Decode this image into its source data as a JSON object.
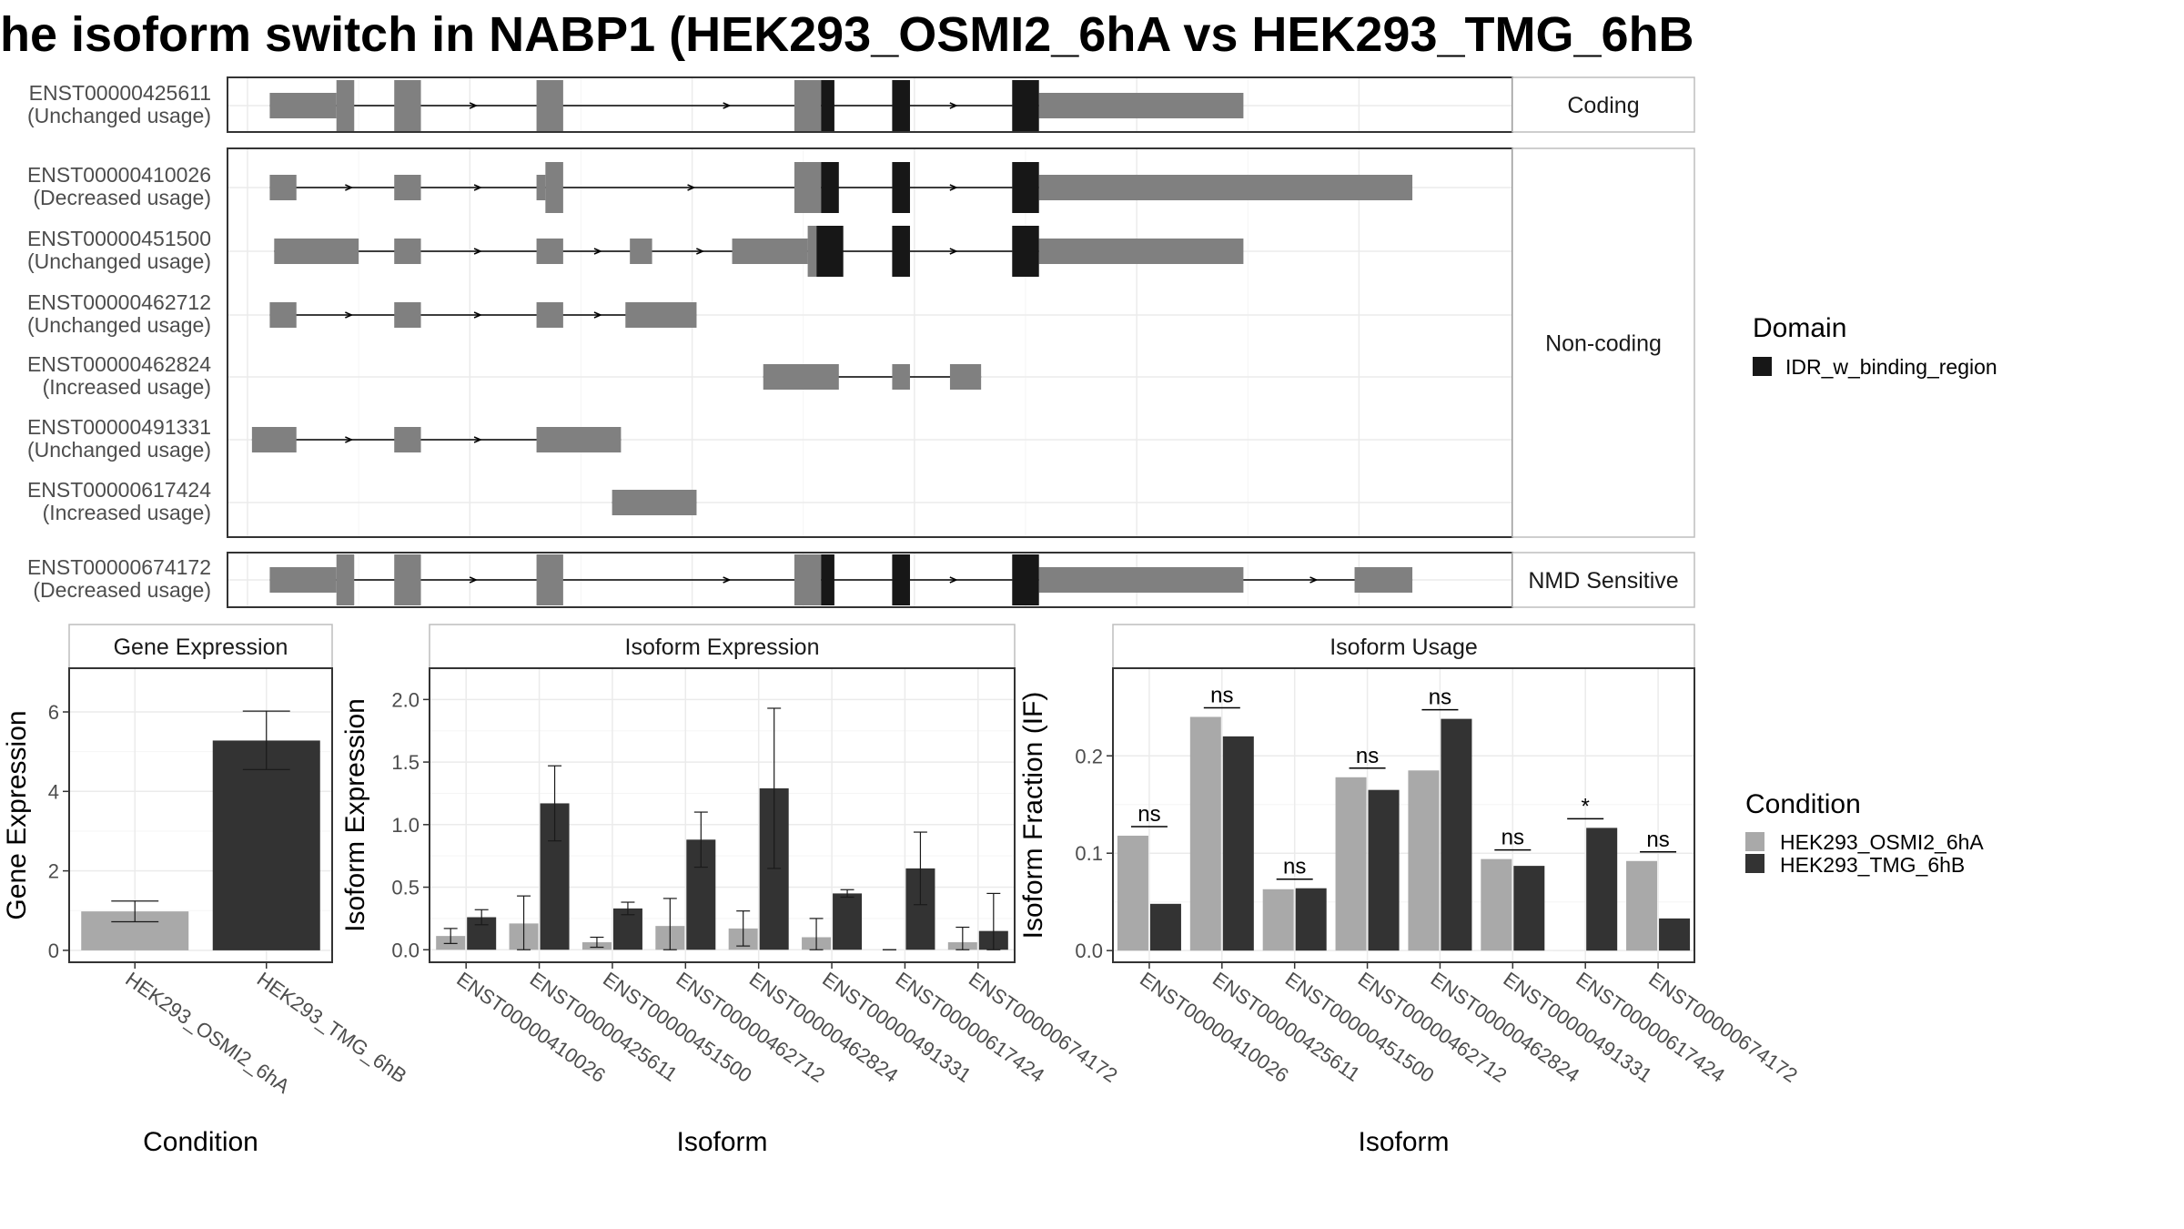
{
  "title": "he isoform switch in NABP1 (HEK293_OSMI2_6hA vs HEK293_TMG_6hB",
  "colors": {
    "exon": "#808080",
    "domain": "#171717",
    "cond1": "#a9a9a9",
    "cond2": "#333333",
    "grid": "#ebebeb",
    "panel_border": "#333333",
    "strip_border": "#bdbdbd"
  },
  "structure": {
    "xrange": [
      0,
      28
    ],
    "groups": [
      {
        "label": "Coding",
        "rows": [
          0
        ]
      },
      {
        "label": "Non-coding",
        "rows": [
          1,
          2,
          3,
          4,
          5,
          6
        ]
      },
      {
        "label": "NMD Sensitive",
        "rows": [
          7
        ]
      }
    ],
    "transcripts": [
      {
        "id": "ENST00000425611",
        "usage": "(Unchanged usage)",
        "line": [
          0.5,
          18.6
        ],
        "exons": [
          [
            0.5,
            2.0,
            "thin"
          ],
          [
            2.0,
            2.4,
            "thick"
          ],
          [
            3.3,
            3.9,
            "thick"
          ],
          [
            6.5,
            7.1,
            "thick"
          ],
          [
            12.3,
            12.9,
            "thick"
          ],
          [
            14.5,
            14.9,
            "thick"
          ],
          [
            17.2,
            17.8,
            "thick"
          ],
          [
            17.8,
            22.4,
            "thin"
          ]
        ],
        "domains": [
          [
            12.9,
            13.2
          ],
          [
            14.5,
            14.9
          ],
          [
            17.2,
            17.8
          ]
        ],
        "arrows": [
          5.1,
          10.8,
          15.9
        ]
      },
      {
        "id": "ENST00000410026",
        "usage": "(Decreased usage)",
        "line": [
          0.5,
          18.6
        ],
        "exons": [
          [
            0.5,
            1.1,
            "thin"
          ],
          [
            3.3,
            3.9,
            "thin"
          ],
          [
            6.5,
            6.7,
            "thin"
          ],
          [
            6.7,
            7.1,
            "thick"
          ],
          [
            12.3,
            12.9,
            "thick"
          ],
          [
            14.5,
            14.9,
            "thick"
          ],
          [
            17.2,
            17.8,
            "thick"
          ],
          [
            17.8,
            26.2,
            "thin"
          ]
        ],
        "domains": [
          [
            12.9,
            13.3
          ],
          [
            14.5,
            14.9
          ],
          [
            17.2,
            17.8
          ]
        ],
        "arrows": [
          2.3,
          5.2,
          10.0,
          15.9
        ]
      },
      {
        "id": "ENST00000451500",
        "usage": "(Unchanged usage)",
        "line": [
          0.6,
          18.6
        ],
        "exons": [
          [
            0.6,
            2.5,
            "thin"
          ],
          [
            3.3,
            3.9,
            "thin"
          ],
          [
            6.5,
            7.1,
            "thin"
          ],
          [
            8.6,
            9.1,
            "thin"
          ],
          [
            10.9,
            12.6,
            "thin"
          ],
          [
            12.6,
            13.0,
            "thick"
          ],
          [
            14.5,
            14.9,
            "thick"
          ],
          [
            17.2,
            17.8,
            "thick"
          ],
          [
            17.8,
            22.4,
            "thin"
          ]
        ],
        "domains": [
          [
            12.8,
            13.4
          ],
          [
            14.5,
            14.9
          ],
          [
            17.2,
            17.8
          ]
        ],
        "arrows": [
          5.2,
          7.9,
          10.2,
          15.9
        ]
      },
      {
        "id": "ENST00000462712",
        "usage": "(Unchanged usage)",
        "line": [
          0.5,
          10.1
        ],
        "exons": [
          [
            0.5,
            1.1,
            "thin"
          ],
          [
            3.3,
            3.9,
            "thin"
          ],
          [
            6.5,
            7.1,
            "thin"
          ],
          [
            8.5,
            10.1,
            "thin"
          ]
        ],
        "domains": [],
        "arrows": [
          2.3,
          5.2,
          7.9
        ]
      },
      {
        "id": "ENST00000462824",
        "usage": "(Increased usage)",
        "line": [
          11.6,
          16.5
        ],
        "exons": [
          [
            11.6,
            13.3,
            "thin"
          ],
          [
            14.5,
            14.9,
            "thin"
          ],
          [
            15.8,
            16.5,
            "thin"
          ]
        ],
        "domains": [],
        "arrows": []
      },
      {
        "id": "ENST00000491331",
        "usage": "(Unchanged usage)",
        "line": [
          0.1,
          8.4
        ],
        "exons": [
          [
            0.1,
            1.1,
            "thin"
          ],
          [
            3.3,
            3.9,
            "thin"
          ],
          [
            6.5,
            8.4,
            "thin"
          ]
        ],
        "domains": [],
        "arrows": [
          2.3,
          5.2
        ]
      },
      {
        "id": "ENST00000617424",
        "usage": "(Increased usage)",
        "line": [
          8.2,
          10.1
        ],
        "exons": [
          [
            8.2,
            10.1,
            "thin"
          ]
        ],
        "domains": [],
        "arrows": []
      },
      {
        "id": "ENST00000674172",
        "usage": "(Decreased usage)",
        "line": [
          0.5,
          26.2
        ],
        "exons": [
          [
            0.5,
            2.0,
            "thin"
          ],
          [
            2.0,
            2.4,
            "thick"
          ],
          [
            3.3,
            3.9,
            "thick"
          ],
          [
            6.5,
            7.1,
            "thick"
          ],
          [
            12.3,
            12.9,
            "thick"
          ],
          [
            14.5,
            14.9,
            "thick"
          ],
          [
            17.2,
            17.8,
            "thick"
          ],
          [
            17.8,
            22.4,
            "thin"
          ],
          [
            24.9,
            26.2,
            "thin"
          ]
        ],
        "domains": [
          [
            12.9,
            13.2
          ],
          [
            14.5,
            14.9
          ],
          [
            17.2,
            17.8
          ]
        ],
        "arrows": [
          5.1,
          10.8,
          15.9,
          24.0
        ]
      }
    ]
  },
  "legend_domain": {
    "title": "Domain",
    "items": [
      "IDR_w_binding_region"
    ]
  },
  "legend_condition": {
    "title": "Condition",
    "items": [
      "HEK293_OSMI2_6hA",
      "HEK293_TMG_6hB"
    ]
  },
  "chart_data": [
    {
      "type": "bar",
      "title": "Gene Expression",
      "xlabel": "Condition",
      "ylabel": "Gene Expression",
      "categories": [
        "HEK293_OSMI2_6hA",
        "HEK293_TMG_6hB"
      ],
      "values": [
        0.98,
        5.28
      ],
      "errors": [
        [
          0.72,
          1.24
        ],
        [
          4.55,
          6.02
        ]
      ],
      "ylim": [
        -0.3,
        7.1
      ],
      "yticks": [
        0,
        2,
        4,
        6
      ]
    },
    {
      "type": "bar",
      "title": "Isoform Expression",
      "xlabel": "Isoform",
      "ylabel": "Isoform Expression",
      "categories": [
        "ENST00000410026",
        "ENST00000425611",
        "ENST00000451500",
        "ENST00000462712",
        "ENST00000462824",
        "ENST00000491331",
        "ENST00000617424",
        "ENST00000674172"
      ],
      "series": [
        {
          "name": "HEK293_OSMI2_6hA",
          "values": [
            0.11,
            0.21,
            0.06,
            0.19,
            0.17,
            0.1,
            0.0,
            0.06
          ],
          "errors": [
            [
              0.05,
              0.17
            ],
            [
              0.0,
              0.43
            ],
            [
              0.02,
              0.1
            ],
            [
              0.0,
              0.41
            ],
            [
              0.03,
              0.31
            ],
            [
              0.0,
              0.25
            ],
            [
              0.0,
              0.0
            ],
            [
              0.0,
              0.18
            ]
          ]
        },
        {
          "name": "HEK293_TMG_6hB",
          "values": [
            0.26,
            1.17,
            0.33,
            0.88,
            1.29,
            0.45,
            0.65,
            0.15
          ],
          "errors": [
            [
              0.2,
              0.32
            ],
            [
              0.87,
              1.47
            ],
            [
              0.28,
              0.38
            ],
            [
              0.66,
              1.1
            ],
            [
              0.65,
              1.93
            ],
            [
              0.42,
              0.48
            ],
            [
              0.36,
              0.94
            ],
            [
              0.0,
              0.45
            ]
          ]
        }
      ],
      "ylim": [
        -0.1,
        2.25
      ],
      "yticks": [
        "0.0",
        "0.5",
        "1.0",
        "1.5",
        "2.0"
      ]
    },
    {
      "type": "bar",
      "title": "Isoform Usage",
      "xlabel": "Isoform",
      "ylabel": "Isoform Fraction (IF)",
      "categories": [
        "ENST00000410026",
        "ENST00000425611",
        "ENST00000451500",
        "ENST00000462712",
        "ENST00000462824",
        "ENST00000491331",
        "ENST00000617424",
        "ENST00000674172"
      ],
      "series": [
        {
          "name": "HEK293_OSMI2_6hA",
          "values": [
            0.118,
            0.24,
            0.063,
            0.178,
            0.185,
            0.094,
            0.0,
            0.092
          ]
        },
        {
          "name": "HEK293_TMG_6hB",
          "values": [
            0.048,
            0.22,
            0.064,
            0.165,
            0.238,
            0.087,
            0.126,
            0.033
          ]
        }
      ],
      "significance": [
        "ns",
        "ns",
        "ns",
        "ns",
        "ns",
        "ns",
        "*",
        "ns"
      ],
      "ylim": [
        -0.012,
        0.29
      ],
      "yticks": [
        "0.0",
        "0.1",
        "0.2"
      ]
    }
  ]
}
